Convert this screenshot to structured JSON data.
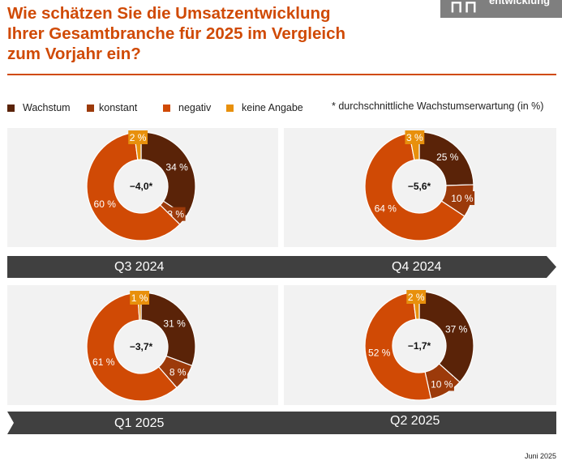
{
  "header": {
    "title_lines": [
      "Wie schätzen Sie die Umsatzentwicklung",
      "Ihrer Gesamtbranche für 2025 im Vergleich",
      "zum Vorjahr ein?"
    ],
    "logo_text": "entwicklung"
  },
  "legend": {
    "items": [
      {
        "label": "Wachstum",
        "color": "#5a2308"
      },
      {
        "label": "konstant",
        "color": "#9c3a0a"
      },
      {
        "label": "negativ",
        "color": "#d04a05"
      },
      {
        "label": "keine Angabe",
        "color": "#e8900c"
      }
    ],
    "note": "* durchschnittliche Wachstumserwartung (in %)"
  },
  "chart_data": [
    {
      "type": "pie",
      "title": "Q3 2024",
      "center_label": "−4,0*",
      "categories": [
        "Wachstum",
        "konstant",
        "negativ",
        "keine Angabe"
      ],
      "values": [
        34,
        3,
        60,
        2
      ],
      "labels": [
        "34 %",
        "3 %",
        "60 %",
        "2 %"
      ]
    },
    {
      "type": "pie",
      "title": "Q4 2024",
      "center_label": "−5,6*",
      "categories": [
        "Wachstum",
        "konstant",
        "negativ",
        "keine Angabe"
      ],
      "values": [
        25,
        10,
        64,
        3
      ],
      "labels": [
        "25 %",
        "10 %",
        "64 %",
        "3 %"
      ]
    },
    {
      "type": "pie",
      "title": "Q1 2025",
      "center_label": "−3,7*",
      "categories": [
        "Wachstum",
        "konstant",
        "negativ",
        "keine Angabe"
      ],
      "values": [
        31,
        8,
        61,
        1
      ],
      "labels": [
        "31 %",
        "8 %",
        "61 %",
        "1 %"
      ]
    },
    {
      "type": "pie",
      "title": "Q2 2025",
      "center_label": "−1,7*",
      "categories": [
        "Wachstum",
        "konstant",
        "negativ",
        "keine Angabe"
      ],
      "values": [
        37,
        10,
        52,
        2
      ],
      "labels": [
        "37 %",
        "10 %",
        "52 %",
        "2 %"
      ]
    }
  ],
  "footer": {
    "date": "Juni 2025"
  }
}
